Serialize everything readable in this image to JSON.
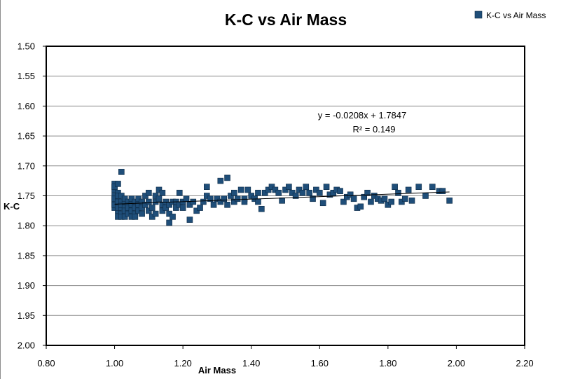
{
  "chart_data": {
    "type": "scatter",
    "title": "K-C vs Air Mass",
    "xlabel": "Air Mass",
    "ylabel": "K-C",
    "xlim": [
      0.8,
      2.2
    ],
    "ylim": [
      1.5,
      2.0
    ],
    "y_inverted": true,
    "x_ticks": [
      "0.80",
      "1.00",
      "1.20",
      "1.40",
      "1.60",
      "1.80",
      "2.00",
      "2.20"
    ],
    "y_ticks": [
      "1.50",
      "1.55",
      "1.60",
      "1.65",
      "1.70",
      "1.75",
      "1.80",
      "1.85",
      "1.90",
      "1.95",
      "2.00"
    ],
    "grid": "horizontal",
    "legend_position": "top-right",
    "series": [
      {
        "name": "K-C vs Air Mass",
        "color": "#1F4E79",
        "marker": "square",
        "x": [
          1.0,
          1.0,
          1.0,
          1.0,
          1.0,
          1.0,
          1.0,
          1.0,
          1.01,
          1.01,
          1.01,
          1.01,
          1.01,
          1.01,
          1.01,
          1.02,
          1.02,
          1.02,
          1.02,
          1.02,
          1.02,
          1.02,
          1.03,
          1.03,
          1.03,
          1.03,
          1.03,
          1.04,
          1.04,
          1.04,
          1.04,
          1.04,
          1.05,
          1.05,
          1.05,
          1.05,
          1.06,
          1.06,
          1.06,
          1.06,
          1.07,
          1.07,
          1.07,
          1.08,
          1.08,
          1.08,
          1.09,
          1.09,
          1.1,
          1.1,
          1.1,
          1.11,
          1.11,
          1.12,
          1.12,
          1.12,
          1.13,
          1.13,
          1.14,
          1.14,
          1.14,
          1.15,
          1.15,
          1.16,
          1.16,
          1.16,
          1.17,
          1.17,
          1.18,
          1.18,
          1.19,
          1.19,
          1.2,
          1.2,
          1.21,
          1.22,
          1.22,
          1.23,
          1.24,
          1.25,
          1.26,
          1.27,
          1.27,
          1.28,
          1.29,
          1.3,
          1.31,
          1.31,
          1.32,
          1.33,
          1.33,
          1.34,
          1.35,
          1.35,
          1.36,
          1.37,
          1.38,
          1.38,
          1.39,
          1.4,
          1.41,
          1.42,
          1.42,
          1.43,
          1.44,
          1.45,
          1.46,
          1.47,
          1.48,
          1.49,
          1.5,
          1.51,
          1.52,
          1.53,
          1.54,
          1.55,
          1.56,
          1.57,
          1.58,
          1.59,
          1.6,
          1.61,
          1.62,
          1.63,
          1.64,
          1.65,
          1.66,
          1.67,
          1.68,
          1.69,
          1.7,
          1.71,
          1.72,
          1.73,
          1.74,
          1.75,
          1.76,
          1.77,
          1.78,
          1.79,
          1.8,
          1.81,
          1.82,
          1.83,
          1.84,
          1.85,
          1.86,
          1.87,
          1.89,
          1.91,
          1.93,
          1.95,
          1.96,
          1.98
        ],
        "y": [
          1.73,
          1.74,
          1.75,
          1.76,
          1.77,
          1.735,
          1.755,
          1.765,
          1.73,
          1.745,
          1.76,
          1.775,
          1.785,
          1.75,
          1.77,
          1.71,
          1.75,
          1.76,
          1.77,
          1.78,
          1.785,
          1.765,
          1.76,
          1.77,
          1.775,
          1.785,
          1.755,
          1.76,
          1.765,
          1.775,
          1.78,
          1.77,
          1.755,
          1.765,
          1.775,
          1.785,
          1.76,
          1.77,
          1.78,
          1.785,
          1.755,
          1.765,
          1.775,
          1.76,
          1.77,
          1.78,
          1.75,
          1.765,
          1.745,
          1.76,
          1.775,
          1.77,
          1.785,
          1.75,
          1.76,
          1.78,
          1.74,
          1.755,
          1.745,
          1.765,
          1.775,
          1.76,
          1.77,
          1.795,
          1.765,
          1.78,
          1.76,
          1.785,
          1.77,
          1.76,
          1.745,
          1.765,
          1.76,
          1.77,
          1.755,
          1.765,
          1.79,
          1.76,
          1.775,
          1.77,
          1.76,
          1.735,
          1.75,
          1.755,
          1.765,
          1.755,
          1.725,
          1.76,
          1.755,
          1.72,
          1.765,
          1.75,
          1.745,
          1.76,
          1.755,
          1.74,
          1.755,
          1.76,
          1.74,
          1.75,
          1.755,
          1.745,
          1.76,
          1.772,
          1.745,
          1.74,
          1.735,
          1.74,
          1.745,
          1.758,
          1.74,
          1.735,
          1.745,
          1.75,
          1.74,
          1.745,
          1.735,
          1.745,
          1.755,
          1.74,
          1.745,
          1.762,
          1.735,
          1.748,
          1.745,
          1.74,
          1.742,
          1.76,
          1.752,
          1.748,
          1.755,
          1.77,
          1.768,
          1.752,
          1.745,
          1.76,
          1.75,
          1.755,
          1.758,
          1.755,
          1.765,
          1.76,
          1.735,
          1.745,
          1.76,
          1.755,
          1.74,
          1.758,
          1.735,
          1.75,
          1.735,
          1.742,
          1.742,
          1.758
        ]
      }
    ],
    "trendline": {
      "type": "linear",
      "slope": -0.0208,
      "intercept": 1.7847,
      "x_range": [
        1.0,
        1.98
      ],
      "equation_label": "y = -0.0208x + 1.7847",
      "r2_label": "R² = 0.149"
    }
  }
}
